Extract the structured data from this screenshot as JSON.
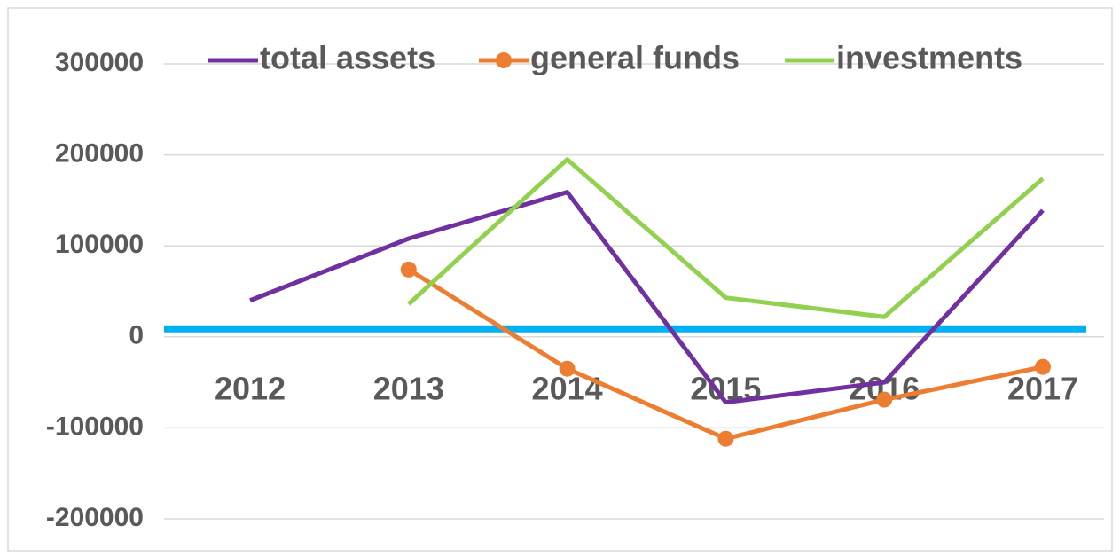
{
  "chart_data": {
    "type": "line",
    "categories": [
      "2012",
      "2013",
      "2014",
      "2015",
      "2016",
      "2017"
    ],
    "series": [
      {
        "name": "total assets",
        "color": "#7030a0",
        "values": [
          40000,
          108000,
          159000,
          -72000,
          -50000,
          139000
        ]
      },
      {
        "name": "general funds",
        "color": "#ed7d31",
        "marker": true,
        "values": [
          null,
          74000,
          -35000,
          -112000,
          -69000,
          -33000
        ]
      },
      {
        "name": "investments",
        "color": "#92d050",
        "values": [
          null,
          36000,
          195000,
          43000,
          22000,
          174000
        ]
      }
    ],
    "ylim": [
      -200000,
      300000
    ],
    "yticks": [
      -200000,
      -100000,
      0,
      100000,
      200000,
      300000
    ],
    "grid": true,
    "legend": "top",
    "axis_color": "#00b0f0"
  }
}
